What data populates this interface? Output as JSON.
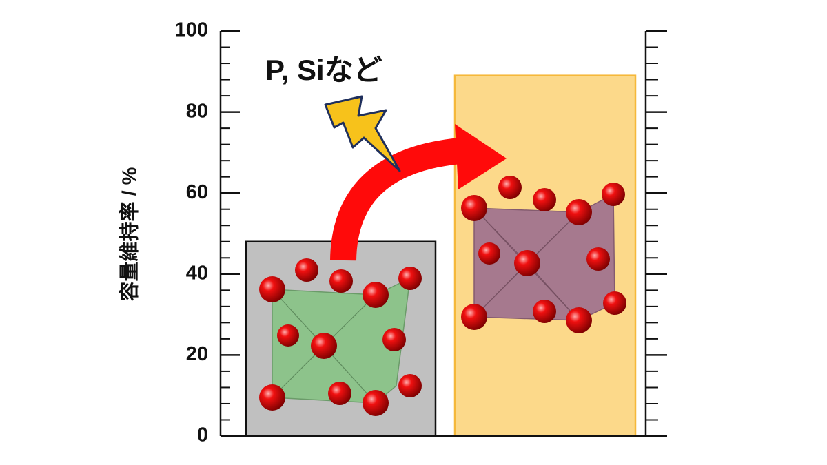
{
  "chart_data": {
    "type": "bar",
    "ylabel": "容量維持率 / %",
    "annotation": "P, Siなど",
    "values": [
      48,
      89
    ],
    "colors": [
      "#c0c0c0",
      "#fcd98a"
    ],
    "edgecolors": [
      "#111111",
      "#f5b83a"
    ],
    "ylim": [
      0,
      100
    ],
    "yticks": [
      0,
      20,
      40,
      60,
      80,
      100
    ],
    "yminorticks": [
      4,
      8,
      12,
      16,
      24,
      28,
      32,
      36,
      44,
      48,
      52,
      56,
      64,
      68,
      72,
      76,
      84,
      88,
      92,
      96
    ]
  }
}
